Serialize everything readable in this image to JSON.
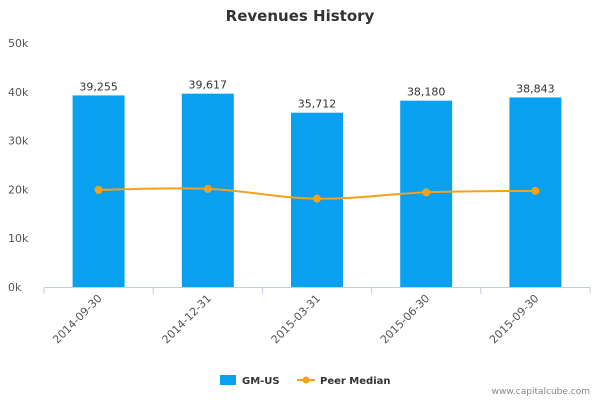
{
  "chart_data": {
    "type": "bar",
    "title": "Revenues History",
    "categories": [
      "2014-09-30",
      "2014-12-31",
      "2015-03-31",
      "2015-06-30",
      "2015-09-30"
    ],
    "series": [
      {
        "name": "GM-US",
        "type": "bar",
        "color": "#0aa0f0",
        "values": [
          39255,
          39617,
          35712,
          38180,
          38843
        ],
        "labels": [
          "39,255",
          "39,617",
          "35,712",
          "38,180",
          "38,843"
        ]
      },
      {
        "name": "Peer Median",
        "type": "line",
        "color": "#f5a11a",
        "values": [
          19900,
          20100,
          18100,
          19400,
          19700
        ]
      }
    ],
    "ylim": [
      0,
      50000
    ],
    "yticks": [
      0,
      10000,
      20000,
      30000,
      40000,
      50000
    ],
    "ytick_labels": [
      "0k",
      "10k",
      "20k",
      "30k",
      "40k",
      "50k"
    ],
    "grid": false,
    "legend": "bottom-center"
  },
  "credit": "www.capitalcube.com"
}
